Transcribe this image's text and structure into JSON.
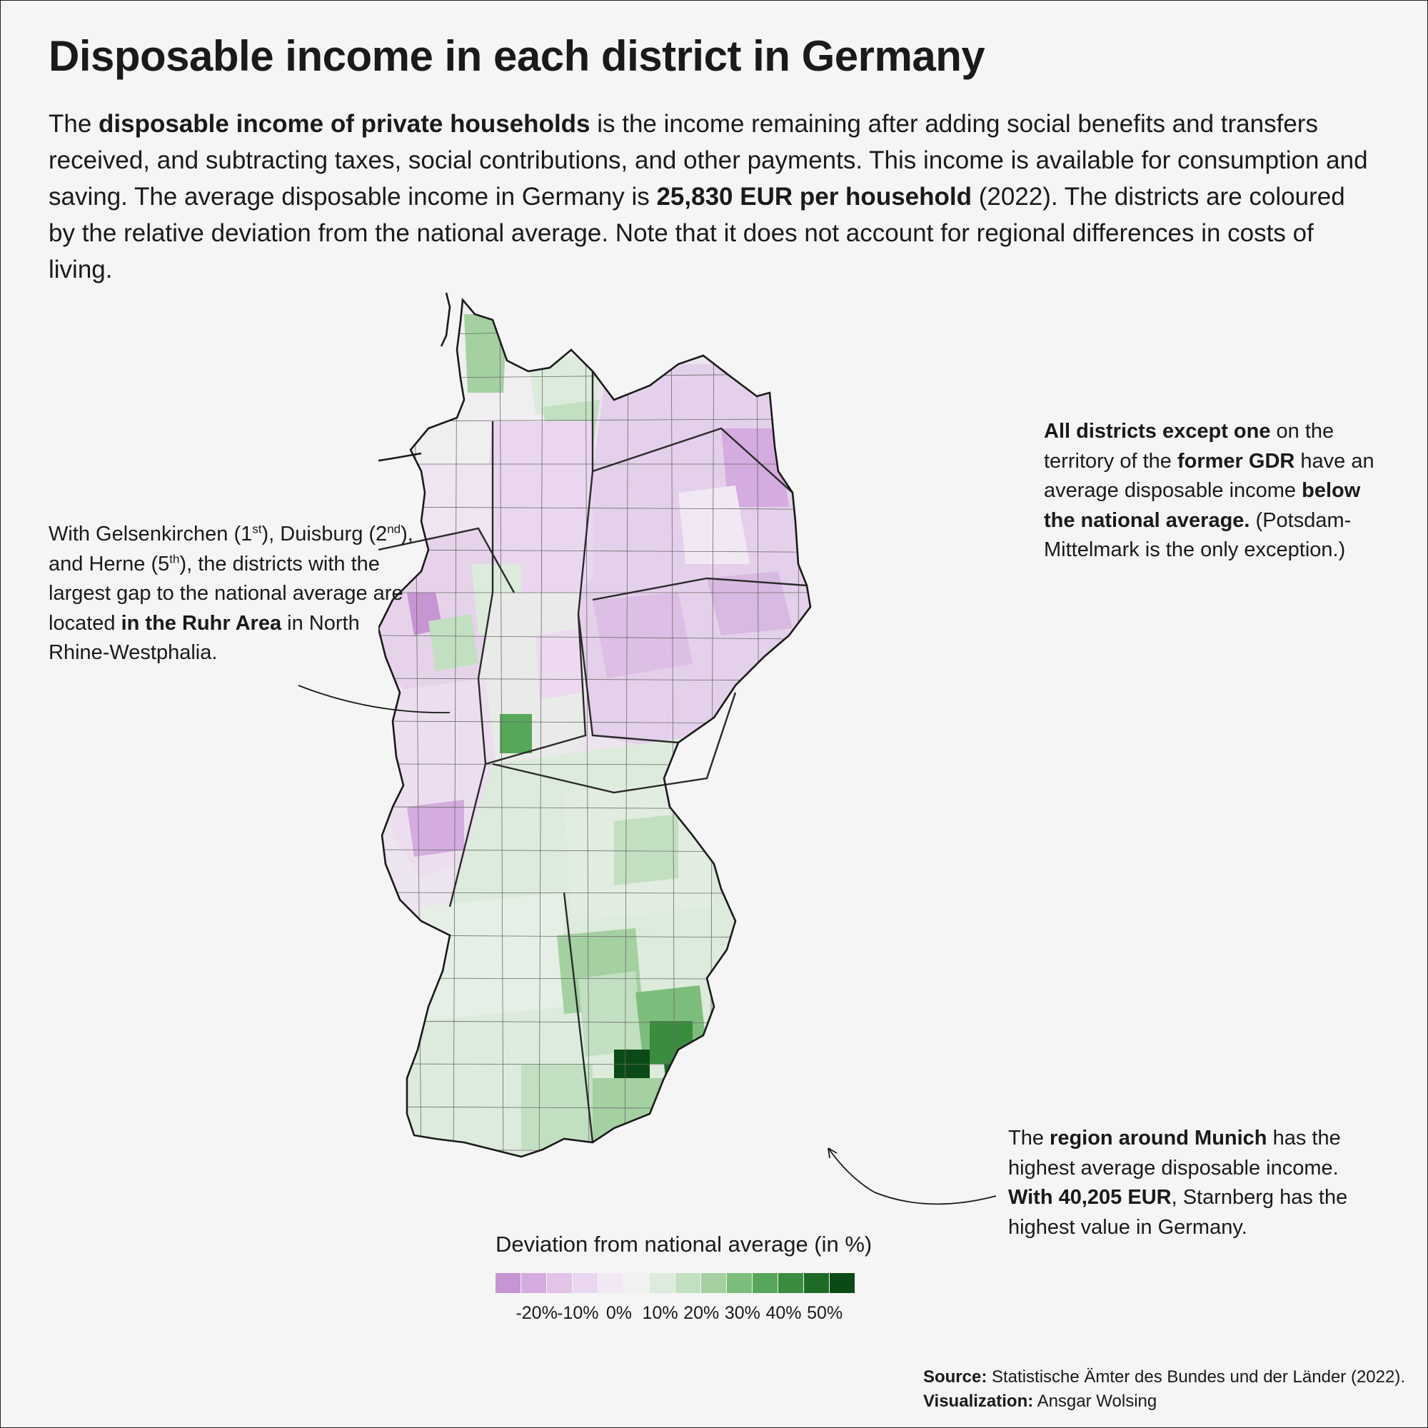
{
  "title": "Disposable income in each district in Germany",
  "intro": {
    "p1": "The ",
    "b1": "disposable income of private households",
    "p2": " is the income remaining after adding social benefits and transfers received, and subtracting taxes, social contributions, and other payments. This income is available for consumption and saving. The average disposable income in Germany is ",
    "b2": "25,830 EUR per household",
    "p3": " (2022). The districts are coloured by the relative deviation from the national average. Note that it does not account for regional differences in costs of living."
  },
  "annotations": {
    "ruhr": {
      "t1": "With Gelsenkirchen (1",
      "s1": "st",
      "t2": "), Duisburg (2",
      "s2": "nd",
      "t3": "), and Herne (5",
      "s3": "th",
      "t4": "), the districts with the largest gap to the national average are located ",
      "b1": "in the Ruhr Area",
      "t5": " in North Rhine-Westphalia."
    },
    "gdr": {
      "b1": "All districts except one",
      "t1": " on the territory of the ",
      "b2": "former GDR",
      "t2": " have an average disposable income ",
      "b3": "below the national average.",
      "t3": " (Potsdam-Mittelmark is the only exception.)"
    },
    "munich": {
      "t1": "The ",
      "b1": "region around Munich",
      "t2": " has the highest average disposable income. ",
      "b2": "With 40,205 EUR",
      "t3": ", Starnberg has the highest value in Germany."
    }
  },
  "legend": {
    "title": "Deviation from national average (in %)",
    "colors": [
      "#c795d3",
      "#d5acdf",
      "#e1c4e8",
      "#ead7ef",
      "#f1e8f3",
      "#f0f2ef",
      "#dcebdb",
      "#c3dfc1",
      "#a4d0a2",
      "#7dbd7c",
      "#57a75a",
      "#3a8c3f",
      "#1e6b27",
      "#0b4a16"
    ],
    "ticks": [
      {
        "label": "-20%",
        "value": -20
      },
      {
        "label": "-10%",
        "value": -10
      },
      {
        "label": "0%",
        "value": 0
      },
      {
        "label": "10%",
        "value": 10
      },
      {
        "label": "20%",
        "value": 20
      },
      {
        "label": "30%",
        "value": 30
      },
      {
        "label": "40%",
        "value": 40
      },
      {
        "label": "50%",
        "value": 50
      }
    ],
    "range": [
      -30,
      55
    ]
  },
  "map": {
    "outline_color": "#1a1a1a",
    "border_color": "#2a2a2a",
    "district_line_color": "#6b6b6b"
  },
  "footer": {
    "source_label": "Source:",
    "source_text": " Statistische Ämter des Bundes und der Länder (2022).",
    "viz_label": "Visualization:",
    "viz_text": " Ansgar Wolsing"
  }
}
